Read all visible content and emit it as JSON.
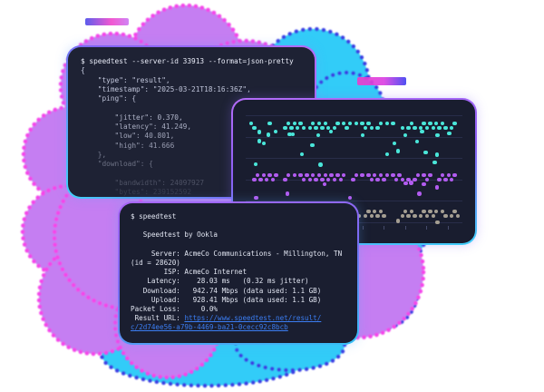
{
  "colors": {
    "page_bg": "#ffffff",
    "panel_bg": "#1e2234",
    "border_purple": "#b46cf8",
    "border_cyan": "#3ecff9",
    "purple_cloud_fill": "#c57ef2",
    "purple_cloud_edge": "#f545ea",
    "cyan_cloud_fill": "#31ccf8",
    "cyan_cloud_edge": "#3a3ee3",
    "link_blue": "#3b7df2",
    "dot_cyan": "#4ae6d9",
    "dot_purple": "#b25cf0",
    "dot_gray": "#a49e92"
  },
  "json_terminal": {
    "lines": [
      "$ speedtest --server-id 33913 --format=json-pretty",
      "{",
      "    \"type\": \"result\",",
      "    \"timestamp\": \"2025-03-21T18:16:36Z\",",
      "    \"ping\": {",
      "",
      "        \"jitter\": 0.370,",
      "        \"latency\": 41.249,",
      "        \"low\": 40.801,",
      "        \"high\": 41.666",
      "    },",
      "    \"download\": {",
      "",
      "        \"bandwidth\": 24097927",
      "        \"bytes\": 239152592"
    ]
  },
  "result_terminal": {
    "body": "$ speedtest\n\n   Speedtest by Ookla\n\n     Server: AcmeCo Communications - Millington, TN\n(id = 28620)\n        ISP: AcmeCo Internet\n    Latency:    28.03 ms   (0.32 ms jitter)\n   Download:   942.74 Mbps (data used: 1.1 GB)\n     Upload:   928.41 Mbps (data used: 1.1 GB)\nPacket Loss:     0.0%\n Result URL: ",
    "url": "https://www.speedtest.net/result/\nc/2d74ee56-a79b-4469-ba21-0cecc92c8bcb"
  },
  "chart_data": {
    "type": "scatter",
    "title": "",
    "xlabel": "",
    "ylabel": "",
    "axis_labels_visible": false,
    "legend": "none",
    "grid": "horizontal",
    "gridlines": {
      "count": 6,
      "top": 17,
      "spacing": 23.5
    },
    "ticks": {
      "count": 10,
      "start": 25,
      "spacing": 23.5,
      "y": 139
    },
    "dot_x0": 18,
    "dot_step": 6.8,
    "dot_size": 4.4,
    "series": [
      {
        "name": "band-cyan",
        "color": "#4ae6d9",
        "band_y": 24,
        "cols": 34,
        "seed": 7,
        "density": 0.68,
        "tail": [
          0.3,
          0.2,
          0.13,
          0.08
        ]
      },
      {
        "name": "band-purple",
        "color": "#b25cf0",
        "band_y": 81,
        "cols": 34,
        "seed": 13,
        "density": 0.66,
        "tail": [
          0.26,
          0.12
        ]
      },
      {
        "name": "band-gray",
        "color": "#a49e92",
        "band_y": 121,
        "cols": 34,
        "seed": 21,
        "density": 0.55,
        "tail": [
          0.09
        ]
      }
    ]
  }
}
